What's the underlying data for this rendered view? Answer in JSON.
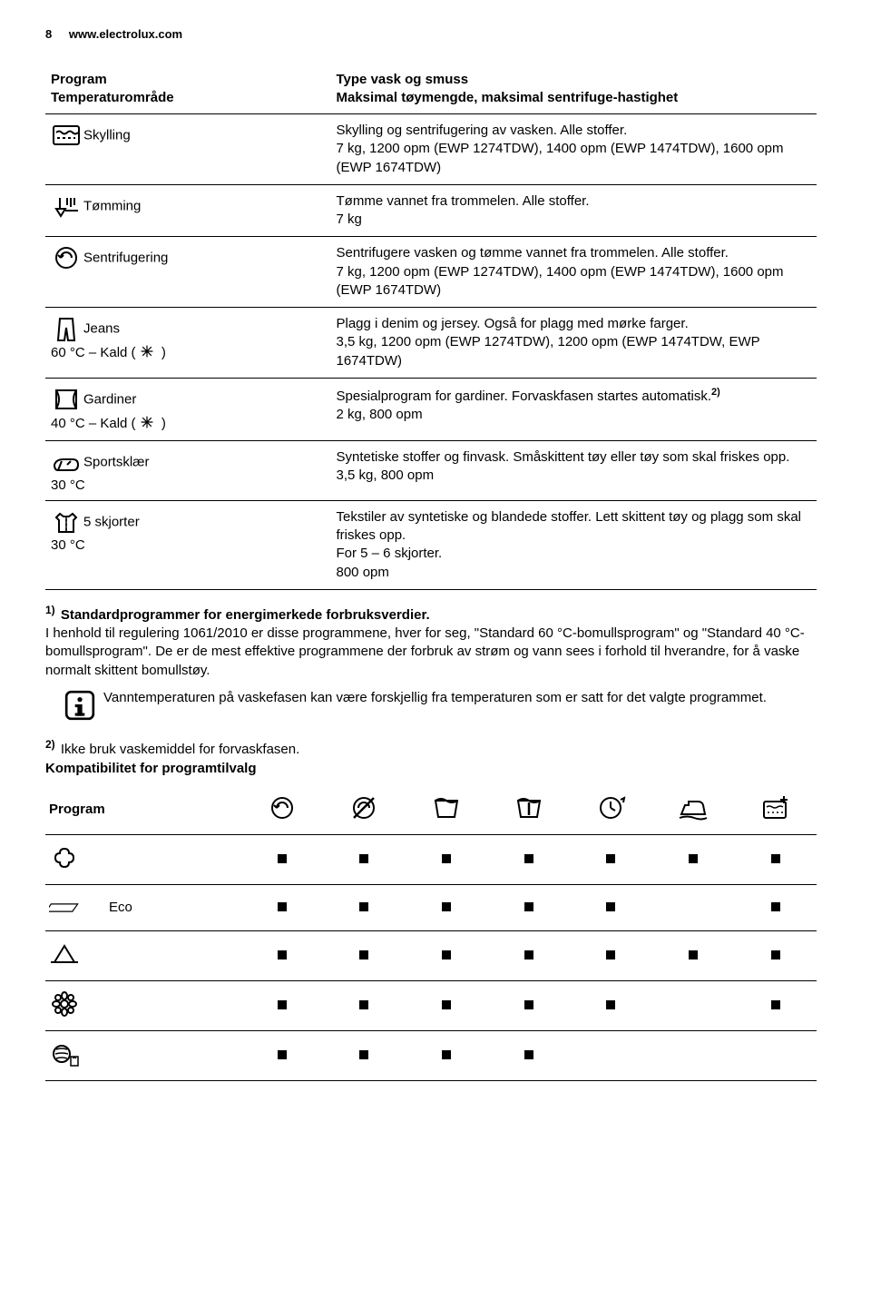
{
  "header": {
    "pagenum": "8",
    "url": "www.electrolux.com"
  },
  "table_header": {
    "left": "Program\nTemperaturområde",
    "right": "Type vask og smuss\nMaksimal tøymengde, maksimal sentrifuge-hastighet"
  },
  "rows": [
    {
      "icon": "rinse",
      "label": "Skylling",
      "sub": "",
      "desc": "Skylling og sentrifugering av vasken. Alle stoffer.\n7 kg, 1200 opm (EWP 1274TDW), 1400 opm (EWP 1474TDW), 1600 opm (EWP 1674TDW)"
    },
    {
      "icon": "drain",
      "label": "Tømming",
      "sub": "",
      "desc": "Tømme vannet fra trommelen. Alle stoffer.\n7 kg"
    },
    {
      "icon": "spin",
      "label": "Sentrifugering",
      "sub": "",
      "desc": "Sentrifugere vasken og tømme vannet fra trommelen. Alle stoffer.\n7 kg, 1200 opm (EWP 1274TDW), 1400 opm (EWP 1474TDW), 1600 opm (EWP 1674TDW)"
    },
    {
      "icon": "jeans",
      "label": "Jeans",
      "sub": "60 °C – Kald ( ❄ )",
      "desc": "Plagg i denim og jersey. Også for plagg med mørke farger.\n3,5 kg, 1200 opm (EWP 1274TDW), 1200 opm (EWP 1474TDW, EWP 1674TDW)"
    },
    {
      "icon": "curtains",
      "label": "Gardiner",
      "sub": "40 °C – Kald ( ❄ )",
      "desc_pre": "Spesialprogram for gardiner. Forvaskfasen startes automatisk.",
      "desc_sup": "2)",
      "desc_post": "\n2 kg, 800 opm"
    },
    {
      "icon": "sports",
      "label": "Sportsklær",
      "sub": "30 °C",
      "desc": "Syntetiske stoffer og finvask. Småskittent tøy eller tøy som skal friskes opp.\n3,5 kg, 800 opm"
    },
    {
      "icon": "shirts",
      "label": "5 skjorter",
      "sub": "30 °C",
      "desc": "Tekstiler av syntetiske og blandede stoffer. Lett skittent tøy og plagg som skal friskes opp.\nFor 5 – 6 skjorter.\n800 opm"
    }
  ],
  "footnote1": {
    "sup": "1)",
    "lead": "Standardprogrammer for energimerkede forbruksverdier.",
    "body": "I henhold til regulering 1061/2010 er disse programmene, hver for seg, \"Standard 60 °C-bomullsprogram\" og \"Standard 40 °C-bomullsprogram\". De er de mest effektive programmene der forbruk av strøm og vann sees i forhold til hverandre, for å vaske normalt skittent bomullstøy.",
    "info": "Vanntemperaturen på vaskefasen kan være forskjellig fra temperaturen som er satt for det valgte programmet."
  },
  "footnote2": {
    "sup": "2)",
    "text": "Ikke bruk vaskemiddel for forvaskfasen."
  },
  "compat_title": "Kompatibilitet for programtilvalg",
  "compat": {
    "header_label": "Program",
    "header_icons": [
      "spin",
      "nospin",
      "basin",
      "basin-hold",
      "clock",
      "iron",
      "prewash-plus"
    ],
    "rows": [
      {
        "icon": "cotton",
        "label": "",
        "marks": [
          true,
          true,
          true,
          true,
          true,
          true,
          true
        ]
      },
      {
        "icon": "eco",
        "label": "Eco",
        "marks": [
          true,
          true,
          true,
          true,
          true,
          false,
          true
        ]
      },
      {
        "icon": "synthetic",
        "label": "",
        "marks": [
          true,
          true,
          true,
          true,
          true,
          true,
          true
        ]
      },
      {
        "icon": "delicate",
        "label": "",
        "marks": [
          true,
          true,
          true,
          true,
          true,
          false,
          true
        ]
      },
      {
        "icon": "wool",
        "label": "",
        "marks": [
          true,
          true,
          true,
          true,
          false,
          false,
          false
        ]
      }
    ]
  }
}
